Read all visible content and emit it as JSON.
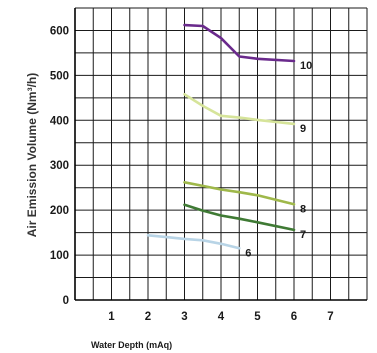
{
  "chart_data": {
    "type": "line",
    "title": "",
    "xlabel": "Water Depth (mAq)",
    "ylabel": "Air Emission Volume (Nm³/h)",
    "xlim": [
      0,
      8
    ],
    "ylim": [
      0,
      650
    ],
    "x_ticks": [
      "1",
      "2",
      "3",
      "4",
      "5",
      "6",
      "7"
    ],
    "y_ticks": [
      "0",
      "100",
      "200",
      "300",
      "400",
      "500",
      "600"
    ],
    "grid": true,
    "series": [
      {
        "name": "10",
        "color": "#6a2a8c",
        "points": [
          [
            3.0,
            612
          ],
          [
            3.5,
            610
          ],
          [
            4.0,
            583
          ],
          [
            4.5,
            542
          ],
          [
            5.0,
            537
          ],
          [
            6.0,
            532
          ]
        ]
      },
      {
        "name": "9",
        "color": "#d6e49a",
        "points": [
          [
            3.0,
            458
          ],
          [
            3.5,
            432
          ],
          [
            4.0,
            410
          ],
          [
            4.5,
            406
          ],
          [
            5.0,
            401
          ],
          [
            6.0,
            392
          ]
        ]
      },
      {
        "name": "8",
        "color": "#9fb84a",
        "points": [
          [
            3.0,
            262
          ],
          [
            3.5,
            254
          ],
          [
            4.0,
            246
          ],
          [
            4.5,
            240
          ],
          [
            5.0,
            233
          ],
          [
            6.0,
            213
          ]
        ]
      },
      {
        "name": "7",
        "color": "#3f7a34",
        "points": [
          [
            3.0,
            212
          ],
          [
            3.5,
            199
          ],
          [
            4.0,
            188
          ],
          [
            4.5,
            181
          ],
          [
            5.0,
            173
          ],
          [
            6.0,
            156
          ]
        ]
      },
      {
        "name": "6",
        "color": "#b8d4e6",
        "points": [
          [
            2.0,
            144
          ],
          [
            2.5,
            140
          ],
          [
            3.0,
            136
          ],
          [
            3.5,
            133
          ],
          [
            4.0,
            125
          ],
          [
            4.5,
            115
          ]
        ]
      }
    ]
  }
}
